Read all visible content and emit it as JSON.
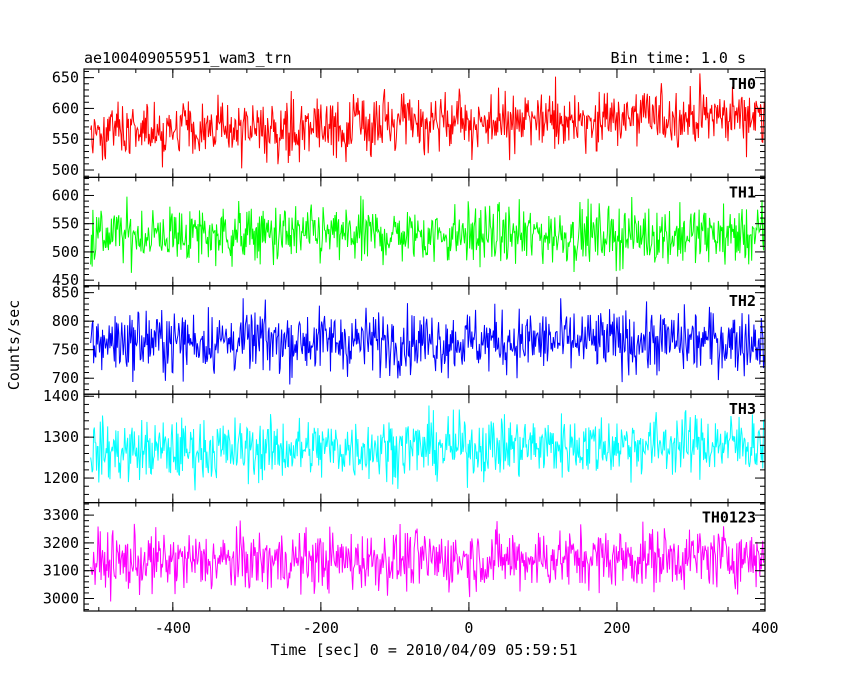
{
  "chart_data": {
    "type": "line",
    "title": "ae100409055951_wam3_trn",
    "subtitle": "Bin time: 1.0 s",
    "xlabel": "Time [sec] 0 = 2010/04/09 05:59:51",
    "ylabel": "Counts/sec",
    "xlim": [
      -520,
      400
    ],
    "x_ticks": [
      -400,
      -200,
      0,
      200,
      400
    ],
    "data_x_range": [
      -511,
      399
    ],
    "bin_time_s": 1.0,
    "grid": false,
    "panels": [
      {
        "name": "TH0",
        "color": "#ff0000",
        "ylim": [
          488,
          664
        ],
        "y_ticks": [
          500,
          550,
          600,
          650
        ],
        "trend_start": 560,
        "trend_end": 590,
        "noise": 24,
        "data_range": [
          490,
          660
        ]
      },
      {
        "name": "TH1",
        "color": "#00ff00",
        "ylim": [
          440,
          632
        ],
        "y_ticks": [
          450,
          500,
          550,
          600
        ],
        "trend_start": 530,
        "trend_end": 530,
        "noise": 26,
        "data_range": [
          445,
          630
        ]
      },
      {
        "name": "TH2",
        "color": "#0000ff",
        "ylim": [
          672,
          862
        ],
        "y_ticks": [
          700,
          750,
          800,
          850
        ],
        "trend_start": 765,
        "trend_end": 765,
        "noise": 28,
        "data_range": [
          675,
          860
        ]
      },
      {
        "name": "TH3",
        "color": "#00ffff",
        "ylim": [
          1140,
          1405
        ],
        "y_ticks": [
          1200,
          1300,
          1400
        ],
        "trend_start": 1265,
        "trend_end": 1285,
        "noise": 38,
        "data_range": [
          1150,
          1400
        ]
      },
      {
        "name": "TH0123",
        "color": "#ff00ff",
        "ylim": [
          2955,
          3345
        ],
        "y_ticks": [
          3000,
          3100,
          3200,
          3300
        ],
        "trend_start": 3130,
        "trend_end": 3150,
        "noise": 55,
        "data_range": [
          2960,
          3340
        ]
      }
    ]
  }
}
